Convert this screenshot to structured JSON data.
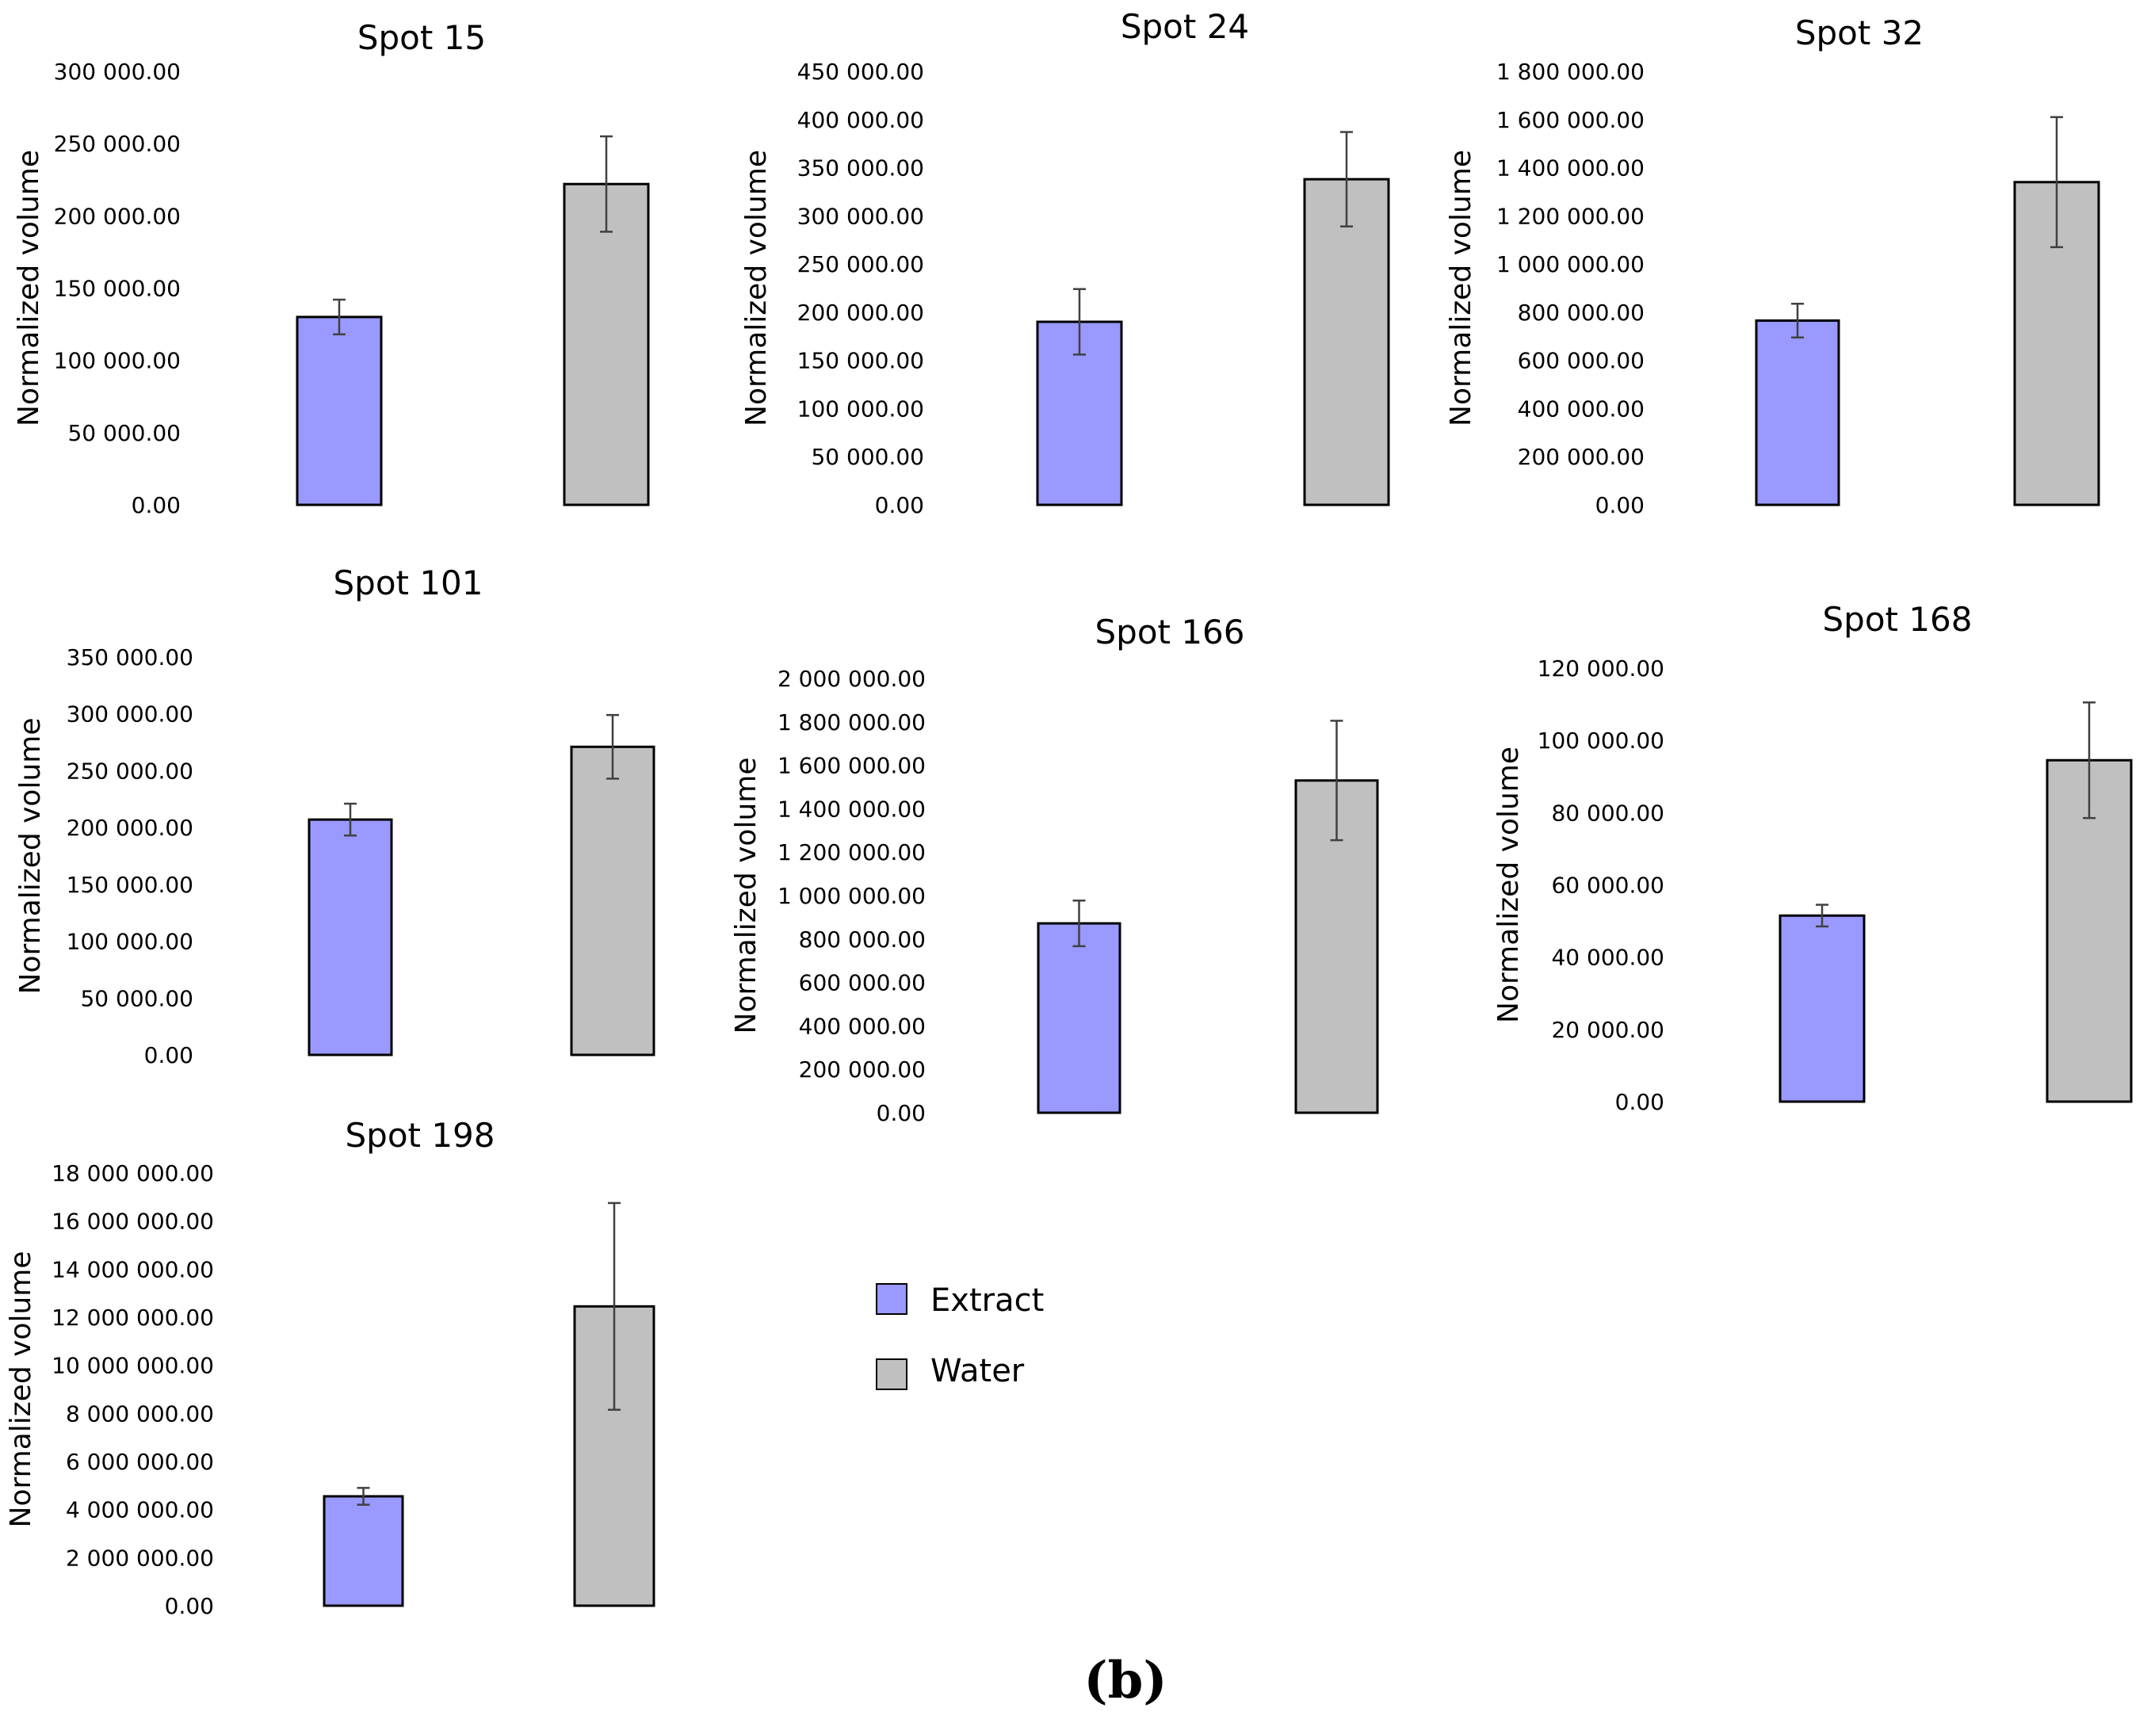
{
  "colors": {
    "extract": "#9999ff",
    "water": "#c0c0c0",
    "bar_stroke": "#000000",
    "error_bar": "#404040"
  },
  "legend": {
    "extract_label": "Extract",
    "water_label": "Water"
  },
  "panel_label": "(b)",
  "chart_data": [
    {
      "type": "bar",
      "title": "Spot 15",
      "xlabel": "",
      "ylabel": "Normalized volume",
      "ylim": [
        0,
        300000
      ],
      "yticks": [
        "0.00",
        "50 000.00",
        "100 000.00",
        "150 000.00",
        "200 000.00",
        "250 000.00",
        "300 000.00"
      ],
      "series": [
        {
          "name": "Extract",
          "value": 130000,
          "error": 12000
        },
        {
          "name": "Water",
          "value": 222000,
          "error": 33000
        }
      ]
    },
    {
      "type": "bar",
      "title": "Spot 24",
      "xlabel": "",
      "ylabel": "Normalized volume",
      "ylim": [
        0,
        450000
      ],
      "yticks": [
        "0.00",
        "50 000.00",
        "100 000.00",
        "150 000.00",
        "200 000.00",
        "250 000.00",
        "300 000.00",
        "350 000.00",
        "400 000.00",
        "450 000.00"
      ],
      "series": [
        {
          "name": "Extract",
          "value": 190000,
          "error": 34000
        },
        {
          "name": "Water",
          "value": 338000,
          "error": 49000
        }
      ]
    },
    {
      "type": "bar",
      "title": "Spot 32",
      "xlabel": "",
      "ylabel": "Normalized volume",
      "ylim": [
        0,
        1800000
      ],
      "yticks": [
        "0.00",
        "200 000.00",
        "400 000.00",
        "600 000.00",
        "800 000.00",
        "1 000 000.00",
        "1 200 000.00",
        "1 400 000.00",
        "1 600 000.00",
        "1 800 000.00"
      ],
      "series": [
        {
          "name": "Extract",
          "value": 765000,
          "error": 70000
        },
        {
          "name": "Water",
          "value": 1340000,
          "error": 270000
        }
      ]
    },
    {
      "type": "bar",
      "title": "Spot 101",
      "xlabel": "",
      "ylabel": "Normalized volume",
      "ylim": [
        0,
        350000
      ],
      "yticks": [
        "0.00",
        "50 000.00",
        "100 000.00",
        "150 000.00",
        "200 000.00",
        "250 000.00",
        "300 000.00",
        "350 000.00"
      ],
      "series": [
        {
          "name": "Extract",
          "value": 207000,
          "error": 14000
        },
        {
          "name": "Water",
          "value": 271000,
          "error": 28000
        }
      ]
    },
    {
      "type": "bar",
      "title": "Spot 166",
      "xlabel": "",
      "ylabel": "Normalized volume",
      "ylim": [
        0,
        2000000
      ],
      "yticks": [
        "0.00",
        "200 000.00",
        "400 000.00",
        "600 000.00",
        "800 000.00",
        "1 000 000.00",
        "1 200 000.00",
        "1 400 000.00",
        "1 600 000.00",
        "1 800 000.00",
        "2 000 000.00"
      ],
      "series": [
        {
          "name": "Extract",
          "value": 872000,
          "error": 105000
        },
        {
          "name": "Water",
          "value": 1530000,
          "error": 275000
        }
      ]
    },
    {
      "type": "bar",
      "title": "Spot 168",
      "xlabel": "",
      "ylabel": "Normalized volume",
      "ylim": [
        0,
        120000
      ],
      "yticks": [
        "0.00",
        "20 000.00",
        "40 000.00",
        "60 000.00",
        "80 000.00",
        "100 000.00",
        "120 000.00"
      ],
      "series": [
        {
          "name": "Extract",
          "value": 51500,
          "error": 3000
        },
        {
          "name": "Water",
          "value": 94500,
          "error": 16000
        }
      ]
    },
    {
      "type": "bar",
      "title": "Spot 198",
      "xlabel": "",
      "ylabel": "Normalized volume",
      "ylim": [
        0,
        18000000
      ],
      "yticks": [
        "0.00",
        "2 000 000.00",
        "4 000 000.00",
        "6 000 000.00",
        "8 000 000.00",
        "10 000 000.00",
        "12 000 000.00",
        "14 000 000.00",
        "16 000 000.00",
        "18 000 000.00"
      ],
      "series": [
        {
          "name": "Extract",
          "value": 4550000,
          "error": 350000
        },
        {
          "name": "Water",
          "value": 12450000,
          "error": 4300000
        }
      ]
    }
  ]
}
